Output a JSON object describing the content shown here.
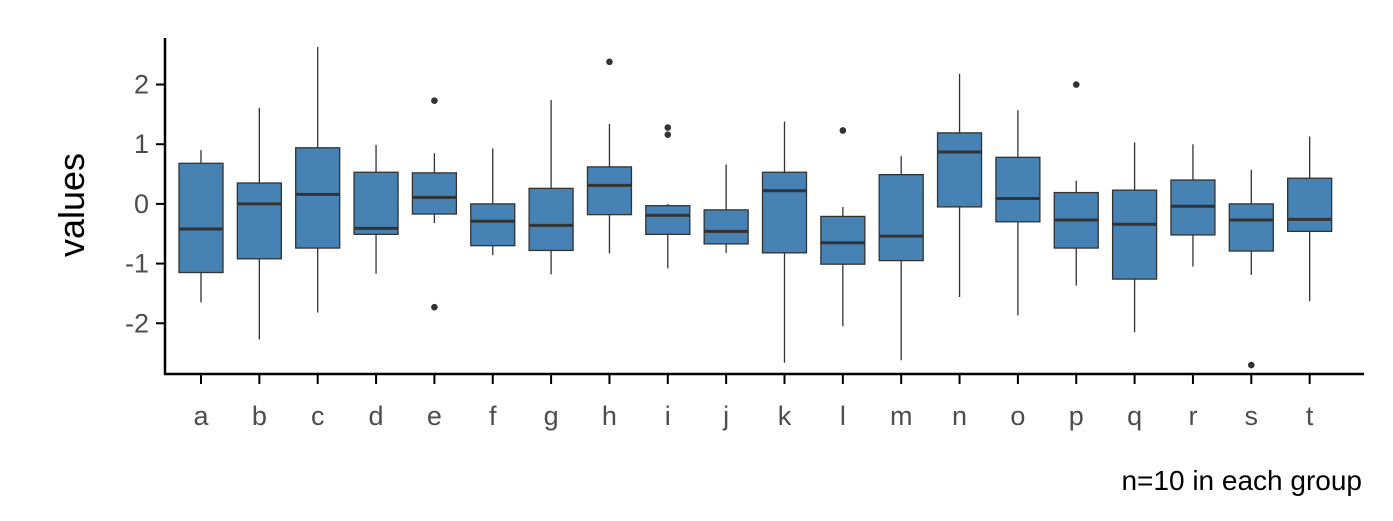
{
  "chart_data": {
    "type": "boxplot",
    "title": "",
    "xlabel": "",
    "ylabel": "values",
    "caption": "n=10 in each group",
    "fill_color": "#4682B4",
    "line_color": "#333333",
    "ylim": [
      -2.85,
      2.88
    ],
    "y_ticks": [
      "-2",
      "-1",
      "0",
      "1",
      "2"
    ],
    "y_tick_values": [
      -2,
      -1,
      0,
      1,
      2
    ],
    "grid": false,
    "legend": "none",
    "categories": [
      "a",
      "b",
      "c",
      "d",
      "e",
      "f",
      "g",
      "h",
      "i",
      "j",
      "k",
      "l",
      "m",
      "n",
      "o",
      "p",
      "q",
      "r",
      "s",
      "t"
    ],
    "boxes": [
      {
        "q1": -1.15,
        "median": -0.42,
        "q3": 0.68,
        "lower": -1.65,
        "upper": 0.9,
        "outliers": []
      },
      {
        "q1": -0.92,
        "median": 0.0,
        "q3": 0.35,
        "lower": -2.27,
        "upper": 1.61,
        "outliers": []
      },
      {
        "q1": -0.74,
        "median": 0.16,
        "q3": 0.94,
        "lower": -1.82,
        "upper": 2.63,
        "outliers": []
      },
      {
        "q1": -0.51,
        "median": -0.41,
        "q3": 0.53,
        "lower": -1.17,
        "upper": 0.99,
        "outliers": []
      },
      {
        "q1": -0.17,
        "median": 0.11,
        "q3": 0.52,
        "lower": -0.32,
        "upper": 0.85,
        "outliers": [
          1.73,
          -1.73
        ]
      },
      {
        "q1": -0.7,
        "median": -0.29,
        "q3": 0.0,
        "lower": -0.86,
        "upper": 0.93,
        "outliers": []
      },
      {
        "q1": -0.78,
        "median": -0.36,
        "q3": 0.26,
        "lower": -1.18,
        "upper": 1.74,
        "outliers": []
      },
      {
        "q1": -0.18,
        "median": 0.31,
        "q3": 0.62,
        "lower": -0.83,
        "upper": 1.34,
        "outliers": [
          2.38
        ]
      },
      {
        "q1": -0.51,
        "median": -0.19,
        "q3": -0.03,
        "lower": -1.08,
        "upper": 0.0,
        "outliers": [
          1.28,
          1.16
        ]
      },
      {
        "q1": -0.67,
        "median": -0.46,
        "q3": -0.1,
        "lower": -0.82,
        "upper": 0.66,
        "outliers": []
      },
      {
        "q1": -0.82,
        "median": 0.22,
        "q3": 0.53,
        "lower": -2.66,
        "upper": 1.38,
        "outliers": []
      },
      {
        "q1": -1.01,
        "median": -0.65,
        "q3": -0.21,
        "lower": -2.05,
        "upper": -0.05,
        "outliers": [
          1.23
        ]
      },
      {
        "q1": -0.95,
        "median": -0.54,
        "q3": 0.49,
        "lower": -2.62,
        "upper": 0.8,
        "outliers": []
      },
      {
        "q1": -0.05,
        "median": 0.87,
        "q3": 1.19,
        "lower": -1.56,
        "upper": 2.18,
        "outliers": []
      },
      {
        "q1": -0.3,
        "median": 0.09,
        "q3": 0.78,
        "lower": -1.87,
        "upper": 1.57,
        "outliers": []
      },
      {
        "q1": -0.74,
        "median": -0.27,
        "q3": 0.19,
        "lower": -1.37,
        "upper": 0.39,
        "outliers": [
          2.0
        ]
      },
      {
        "q1": -1.26,
        "median": -0.34,
        "q3": 0.23,
        "lower": -2.15,
        "upper": 1.03,
        "outliers": []
      },
      {
        "q1": -0.52,
        "median": -0.04,
        "q3": 0.4,
        "lower": -1.05,
        "upper": 1.0,
        "outliers": []
      },
      {
        "q1": -0.79,
        "median": -0.27,
        "q3": 0.0,
        "lower": -1.19,
        "upper": 0.57,
        "outliers": [
          -2.7
        ]
      },
      {
        "q1": -0.46,
        "median": -0.26,
        "q3": 0.43,
        "lower": -1.63,
        "upper": 1.13,
        "outliers": []
      }
    ]
  }
}
